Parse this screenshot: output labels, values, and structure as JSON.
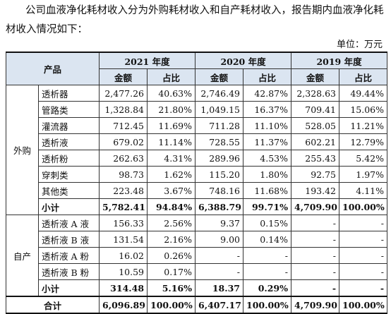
{
  "intro_text": "公司血液净化耗材收入分为外购耗材收入和自产耗材收入，报告期内血液净化耗材收入情况如下：",
  "unit_label": "单位：万元",
  "table": {
    "product_header": "产品",
    "years": [
      "2021 年度",
      "2020 年度",
      "2019 年度"
    ],
    "amount_label": "金额",
    "ratio_label": "占比",
    "groups": [
      {
        "name": "外购",
        "rows": [
          {
            "item": "透析器",
            "v": [
              "2,477.26",
              "40.63%",
              "2,746.49",
              "42.87%",
              "2,328.63",
              "49.44%"
            ]
          },
          {
            "item": "管路类",
            "v": [
              "1,328.84",
              "21.80%",
              "1,049.15",
              "16.37%",
              "709.41",
              "15.06%"
            ]
          },
          {
            "item": "灌流器",
            "v": [
              "712.45",
              "11.69%",
              "711.28",
              "11.10%",
              "528.05",
              "11.21%"
            ]
          },
          {
            "item": "透析液",
            "v": [
              "679.02",
              "11.14%",
              "728.55",
              "11.37%",
              "602.21",
              "12.79%"
            ]
          },
          {
            "item": "透析粉",
            "v": [
              "262.63",
              "4.31%",
              "289.96",
              "4.53%",
              "255.43",
              "5.42%"
            ]
          },
          {
            "item": "穿刺类",
            "v": [
              "98.73",
              "1.62%",
              "115.20",
              "1.80%",
              "92.75",
              "1.97%"
            ]
          },
          {
            "item": "其他类",
            "v": [
              "223.48",
              "3.67%",
              "748.16",
              "11.68%",
              "193.42",
              "4.11%"
            ]
          }
        ],
        "subtotal": {
          "item": "小计",
          "v": [
            "5,782.41",
            "94.84%",
            "6,388.79",
            "99.71%",
            "4,709.90",
            "100.00%"
          ]
        }
      },
      {
        "name": "自产",
        "rows": [
          {
            "item": "透析液 A 液",
            "v": [
              "156.33",
              "2.56%",
              "9.37",
              "0.15%",
              "-",
              "-"
            ]
          },
          {
            "item": "透析液 B 液",
            "v": [
              "131.54",
              "2.16%",
              "9.00",
              "0.14%",
              "-",
              "-"
            ]
          },
          {
            "item": "透析液 A 粉",
            "v": [
              "16.02",
              "0.26%",
              "-",
              "-",
              "-",
              "-"
            ]
          },
          {
            "item": "透析液 B 粉",
            "v": [
              "10.59",
              "0.17%",
              "-",
              "-",
              "-",
              "-"
            ]
          }
        ],
        "subtotal": {
          "item": "小计",
          "v": [
            "314.48",
            "5.16%",
            "18.37",
            "0.29%",
            "-",
            "-"
          ]
        }
      }
    ],
    "total": {
      "label": "合计",
      "v": [
        "6,096.89",
        "100.00%",
        "6,407.17",
        "100.00%",
        "4,709.90",
        "100.00%"
      ]
    }
  }
}
